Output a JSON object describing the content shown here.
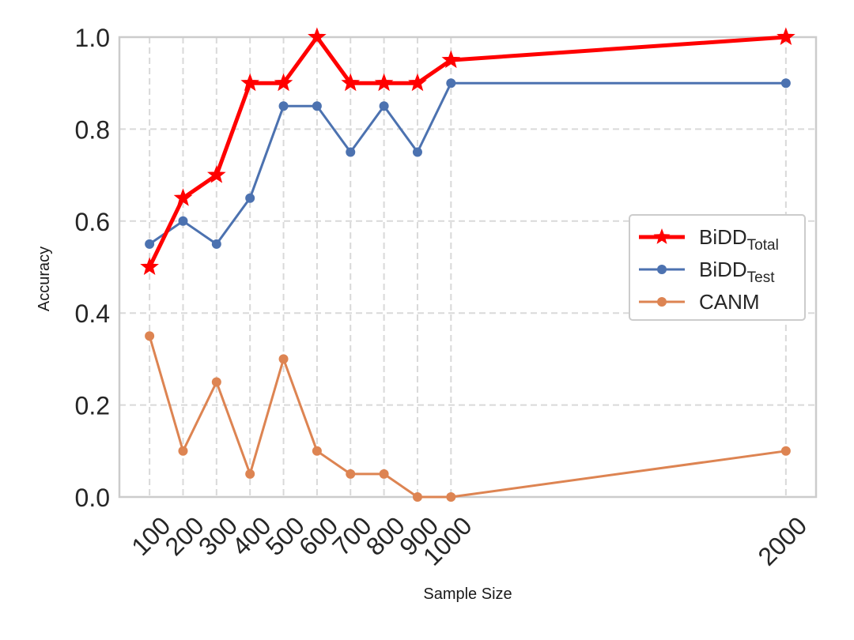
{
  "chart_data": {
    "type": "line",
    "xlabel": "Sample Size",
    "ylabel": "Accuracy",
    "x": [
      100,
      200,
      300,
      400,
      500,
      600,
      700,
      800,
      900,
      1000,
      2000
    ],
    "x_tick_labels": [
      "100",
      "200",
      "300",
      "400",
      "500",
      "600",
      "700",
      "800",
      "900",
      "1000",
      "2000"
    ],
    "y_ticks": [
      0.0,
      0.2,
      0.4,
      0.6,
      0.8,
      1.0
    ],
    "y_tick_labels": [
      "0.0",
      "0.2",
      "0.4",
      "0.6",
      "0.8",
      "1.0"
    ],
    "xlim": [
      10,
      2090
    ],
    "ylim": [
      0.0,
      1.0
    ],
    "grid": true,
    "grid_style": "dashed",
    "legend_position": "center-right",
    "series": [
      {
        "name": "BiDD",
        "name_subscript": "Total",
        "color": "#ff0000",
        "marker": "star",
        "values": [
          0.5,
          0.65,
          0.7,
          0.9,
          0.9,
          1.0,
          0.9,
          0.9,
          0.9,
          0.95,
          1.0
        ]
      },
      {
        "name": "BiDD",
        "name_subscript": "Test",
        "color": "#4c72b0",
        "marker": "circle",
        "values": [
          0.55,
          0.6,
          0.55,
          0.65,
          0.85,
          0.85,
          0.75,
          0.85,
          0.75,
          0.9,
          0.9
        ]
      },
      {
        "name": "CANM",
        "name_subscript": "",
        "color": "#dd8452",
        "marker": "circle",
        "values": [
          0.35,
          0.1,
          0.25,
          0.05,
          0.3,
          0.1,
          0.05,
          0.05,
          0.0,
          0.0,
          0.1
        ]
      }
    ]
  }
}
